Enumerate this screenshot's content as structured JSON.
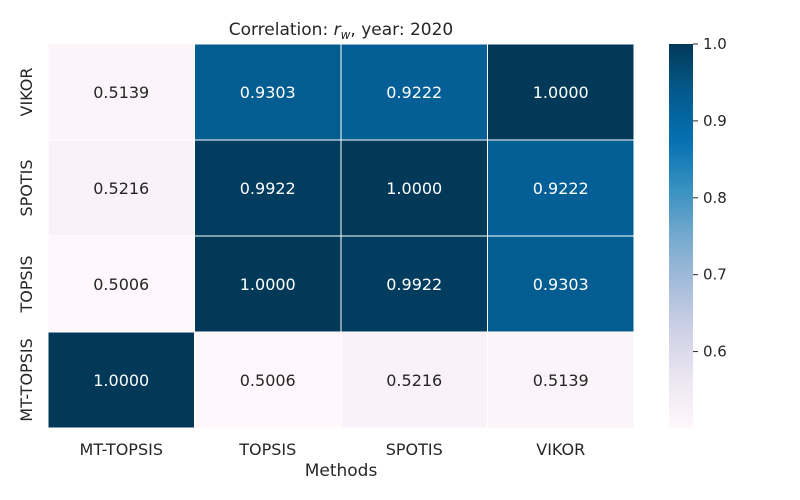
{
  "chart_data": {
    "type": "heatmap",
    "title_prefix": "Correlation: ",
    "title_symbol": "r",
    "title_subscript": "w",
    "title_suffix": ", year: 2020",
    "xlabel": "Methods",
    "ylabel": "",
    "x_categories": [
      "MT-TOPSIS",
      "TOPSIS",
      "SPOTIS",
      "VIKOR"
    ],
    "y_categories": [
      "VIKOR",
      "SPOTIS",
      "TOPSIS",
      "MT-TOPSIS"
    ],
    "values": [
      [
        0.5139,
        0.9303,
        0.9222,
        1.0
      ],
      [
        0.5216,
        0.9922,
        1.0,
        0.9222
      ],
      [
        0.5006,
        1.0,
        0.9922,
        0.9303
      ],
      [
        1.0,
        0.5006,
        0.5216,
        0.5139
      ]
    ],
    "value_labels": [
      [
        "0.5139",
        "0.9303",
        "0.9222",
        "1.0000"
      ],
      [
        "0.5216",
        "0.9922",
        "1.0000",
        "0.9222"
      ],
      [
        "0.5006",
        "1.0000",
        "0.9922",
        "0.9303"
      ],
      [
        "1.0000",
        "0.5006",
        "0.5216",
        "0.5139"
      ]
    ],
    "colorbar": {
      "min": 0.5006,
      "max": 1.0,
      "ticks": [
        0.6,
        0.7,
        0.8,
        0.9,
        1.0
      ],
      "tick_labels": [
        "0.6",
        "0.7",
        "0.8",
        "0.9",
        "1.0"
      ]
    },
    "colormap": "PuBu",
    "colormap_stops": [
      "#fff7fb",
      "#ece7f2",
      "#d0d1e6",
      "#a6bddb",
      "#74a9cf",
      "#3690c0",
      "#0570b0",
      "#045a8d",
      "#023858"
    ],
    "grid": false,
    "legend": "colorbar-right"
  }
}
